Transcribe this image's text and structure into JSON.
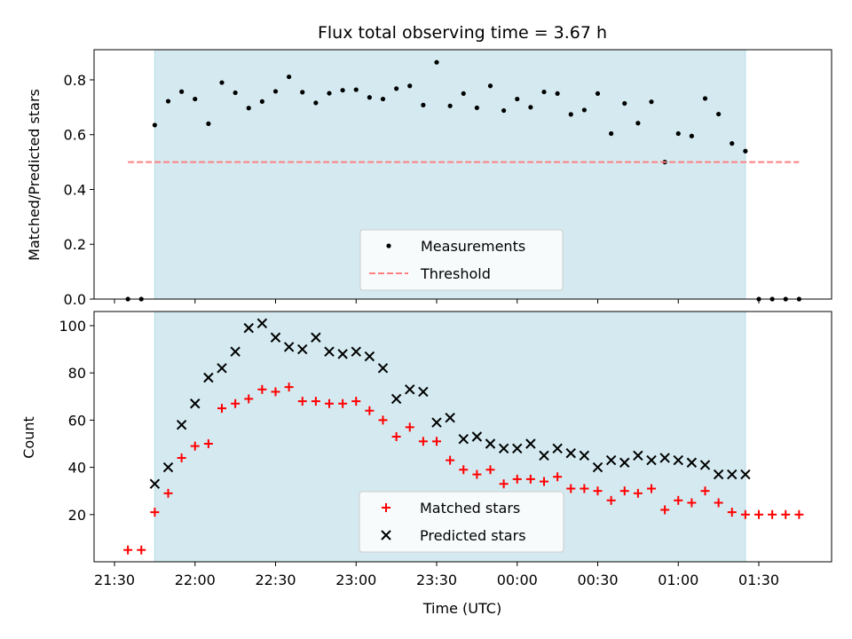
{
  "colors": {
    "shade": "#d4eaf0",
    "shade_edge": "#b9dde6",
    "threshold": "#ff7f7f",
    "matched": "#ff0000",
    "predicted": "#000000",
    "measurement": "#000000"
  },
  "chart_data": [
    {
      "type": "scatter",
      "title": "Flux total observing time = 3.67 h",
      "ylabel": "Matched/Predicted stars",
      "ylim": [
        0,
        0.91
      ],
      "yticks": [
        0.0,
        0.2,
        0.4,
        0.6,
        0.8
      ],
      "ytick_labels": [
        "0.0",
        "0.2",
        "0.4",
        "0.6",
        "0.8"
      ],
      "xticks_labelled": false,
      "shaded_interval": [
        "21:45",
        "01:25"
      ],
      "legend": {
        "placement": "lower center",
        "entries": [
          "Measurements",
          "Threshold"
        ]
      },
      "threshold": {
        "name": "Threshold",
        "value": 0.5,
        "x_range": [
          "21:35",
          "01:45"
        ],
        "style": "dashed"
      },
      "series": [
        {
          "name": "Measurements",
          "marker": "dot",
          "x": [
            "21:35",
            "21:40",
            "21:45",
            "21:50",
            "21:55",
            "22:00",
            "22:05",
            "22:10",
            "22:15",
            "22:20",
            "22:25",
            "22:30",
            "22:35",
            "22:40",
            "22:45",
            "22:50",
            "22:55",
            "23:00",
            "23:05",
            "23:10",
            "23:15",
            "23:20",
            "23:25",
            "23:30",
            "23:35",
            "23:40",
            "23:45",
            "23:50",
            "23:55",
            "00:00",
            "00:05",
            "00:10",
            "00:15",
            "00:20",
            "00:25",
            "00:30",
            "00:35",
            "00:40",
            "00:45",
            "00:50",
            "00:55",
            "01:00",
            "01:05",
            "01:10",
            "01:15",
            "01:20",
            "01:25",
            "01:30",
            "01:35",
            "01:40",
            "01:45"
          ],
          "y": [
            0.0,
            0.0,
            0.635,
            0.722,
            0.757,
            0.73,
            0.64,
            0.79,
            0.753,
            0.697,
            0.721,
            0.758,
            0.811,
            0.755,
            0.716,
            0.751,
            0.762,
            0.764,
            0.736,
            0.73,
            0.768,
            0.778,
            0.708,
            0.864,
            0.705,
            0.75,
            0.698,
            0.778,
            0.688,
            0.73,
            0.7,
            0.756,
            0.75,
            0.674,
            0.69,
            0.75,
            0.604,
            0.714,
            0.642,
            0.72,
            0.5,
            0.604,
            0.595,
            0.732,
            0.675,
            0.568,
            0.54,
            0.0,
            0.0,
            0.0,
            0.0
          ]
        }
      ]
    },
    {
      "type": "scatter",
      "xlabel": "Time (UTC)",
      "ylabel": "Count",
      "ylim": [
        0,
        106
      ],
      "yticks": [
        20,
        40,
        60,
        80,
        100
      ],
      "ytick_labels": [
        "20",
        "40",
        "60",
        "80",
        "100"
      ],
      "xticks": [
        "21:30",
        "22:00",
        "22:30",
        "23:00",
        "23:30",
        "00:00",
        "00:30",
        "01:00",
        "01:30"
      ],
      "xtick_labels": [
        "21:30",
        "22:00",
        "22:30",
        "23:00",
        "23:30",
        "00:00",
        "00:30",
        "01:00",
        "01:30"
      ],
      "shaded_interval": [
        "21:45",
        "01:25"
      ],
      "legend": {
        "placement": "lower center",
        "entries": [
          "Matched stars",
          "Predicted stars"
        ]
      },
      "series": [
        {
          "name": "Matched stars",
          "marker": "plus",
          "x": [
            "21:35",
            "21:40",
            "21:45",
            "21:50",
            "21:55",
            "22:00",
            "22:05",
            "22:10",
            "22:15",
            "22:20",
            "22:25",
            "22:30",
            "22:35",
            "22:40",
            "22:45",
            "22:50",
            "22:55",
            "23:00",
            "23:05",
            "23:10",
            "23:15",
            "23:20",
            "23:25",
            "23:30",
            "23:35",
            "23:40",
            "23:45",
            "23:50",
            "23:55",
            "00:00",
            "00:05",
            "00:10",
            "00:15",
            "00:20",
            "00:25",
            "00:30",
            "00:35",
            "00:40",
            "00:45",
            "00:50",
            "00:55",
            "01:00",
            "01:05",
            "01:10",
            "01:15",
            "01:20",
            "01:25",
            "01:30",
            "01:35",
            "01:40",
            "01:45"
          ],
          "y": [
            5,
            5,
            21,
            29,
            44,
            49,
            50,
            65,
            67,
            69,
            73,
            72,
            74,
            68,
            68,
            67,
            67,
            68,
            64,
            60,
            53,
            57,
            51,
            51,
            43,
            39,
            37,
            39,
            33,
            35,
            35,
            34,
            36,
            31,
            31,
            30,
            26,
            30,
            29,
            31,
            22,
            26,
            25,
            30,
            25,
            21,
            20,
            20,
            20,
            20,
            20
          ]
        },
        {
          "name": "Predicted stars",
          "marker": "x",
          "x": [
            "21:45",
            "21:50",
            "21:55",
            "22:00",
            "22:05",
            "22:10",
            "22:15",
            "22:20",
            "22:25",
            "22:30",
            "22:35",
            "22:40",
            "22:45",
            "22:50",
            "22:55",
            "23:00",
            "23:05",
            "23:10",
            "23:15",
            "23:20",
            "23:25",
            "23:30",
            "23:35",
            "23:40",
            "23:45",
            "23:50",
            "23:55",
            "00:00",
            "00:05",
            "00:10",
            "00:15",
            "00:20",
            "00:25",
            "00:30",
            "00:35",
            "00:40",
            "00:45",
            "00:50",
            "00:55",
            "01:00",
            "01:05",
            "01:10",
            "01:15",
            "01:20",
            "01:25"
          ],
          "y": [
            33,
            40,
            58,
            67,
            78,
            82,
            89,
            99,
            101,
            95,
            91,
            90,
            95,
            89,
            88,
            89,
            87,
            82,
            69,
            73,
            72,
            59,
            61,
            52,
            53,
            50,
            48,
            48,
            50,
            45,
            48,
            46,
            45,
            40,
            43,
            42,
            45,
            43,
            44,
            43,
            42,
            41,
            37,
            37,
            37
          ]
        }
      ]
    }
  ]
}
